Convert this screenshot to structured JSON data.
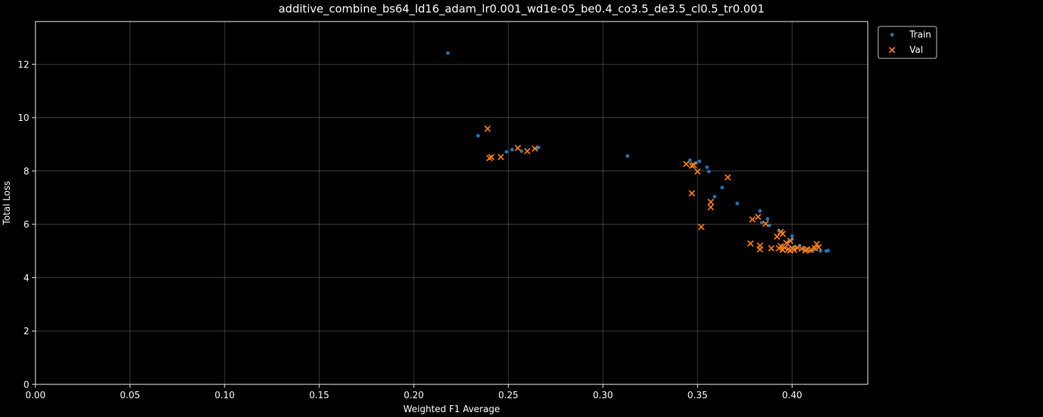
{
  "chart_data": {
    "type": "scatter",
    "title": "additive_combine_bs64_ld16_adam_lr0.001_wd1e-05_be0.4_co3.5_de3.5_cl0.5_tr0.001",
    "xlabel": "Weighted F1 Average",
    "ylabel": "Total Loss",
    "xlim": [
      0.0,
      0.44
    ],
    "ylim": [
      0,
      13.6
    ],
    "xticks": [
      "0.00",
      "0.05",
      "0.10",
      "0.15",
      "0.20",
      "0.25",
      "0.30",
      "0.35",
      "0.40"
    ],
    "yticks": [
      "0",
      "2",
      "4",
      "6",
      "8",
      "10",
      "12"
    ],
    "grid": true,
    "legend_position": "outside-top-right",
    "colors": {
      "train": "#1f77b4",
      "val": "#ff7f0e",
      "background": "#000000",
      "foreground": "#ffffff"
    },
    "series": [
      {
        "name": "Train",
        "marker": "dot",
        "points": [
          [
            0.218,
            12.42
          ],
          [
            0.234,
            9.32
          ],
          [
            0.249,
            8.72
          ],
          [
            0.252,
            8.8
          ],
          [
            0.257,
            8.74
          ],
          [
            0.265,
            8.86
          ],
          [
            0.266,
            8.88
          ],
          [
            0.313,
            8.56
          ],
          [
            0.346,
            8.4
          ],
          [
            0.349,
            8.3
          ],
          [
            0.351,
            8.36
          ],
          [
            0.355,
            8.14
          ],
          [
            0.356,
            7.98
          ],
          [
            0.359,
            7.04
          ],
          [
            0.363,
            7.38
          ],
          [
            0.371,
            6.78
          ],
          [
            0.383,
            6.5
          ],
          [
            0.384,
            6.06
          ],
          [
            0.387,
            6.2
          ],
          [
            0.388,
            5.96
          ],
          [
            0.393,
            5.76
          ],
          [
            0.395,
            5.68
          ],
          [
            0.398,
            5.34
          ],
          [
            0.4,
            5.56
          ],
          [
            0.4,
            5.44
          ],
          [
            0.401,
            5.14
          ],
          [
            0.404,
            5.2
          ],
          [
            0.406,
            5.1
          ],
          [
            0.408,
            5.04
          ],
          [
            0.41,
            5.0
          ],
          [
            0.412,
            5.06
          ],
          [
            0.415,
            5.0
          ],
          [
            0.418,
            5.0
          ],
          [
            0.419,
            5.02
          ]
        ]
      },
      {
        "name": "Val",
        "marker": "x",
        "points": [
          [
            0.239,
            9.58
          ],
          [
            0.24,
            8.48
          ],
          [
            0.241,
            8.52
          ],
          [
            0.246,
            8.52
          ],
          [
            0.255,
            8.86
          ],
          [
            0.26,
            8.74
          ],
          [
            0.264,
            8.84
          ],
          [
            0.344,
            8.26
          ],
          [
            0.347,
            8.2
          ],
          [
            0.348,
            8.22
          ],
          [
            0.35,
            7.98
          ],
          [
            0.347,
            7.16
          ],
          [
            0.357,
            6.84
          ],
          [
            0.357,
            6.64
          ],
          [
            0.366,
            7.76
          ],
          [
            0.352,
            5.9
          ],
          [
            0.379,
            6.18
          ],
          [
            0.382,
            6.28
          ],
          [
            0.386,
            6.02
          ],
          [
            0.378,
            5.28
          ],
          [
            0.383,
            5.2
          ],
          [
            0.383,
            5.06
          ],
          [
            0.389,
            5.1
          ],
          [
            0.392,
            5.54
          ],
          [
            0.394,
            5.72
          ],
          [
            0.395,
            5.64
          ],
          [
            0.397,
            5.3
          ],
          [
            0.399,
            5.38
          ],
          [
            0.393,
            5.1
          ],
          [
            0.394,
            5.18
          ],
          [
            0.395,
            5.04
          ],
          [
            0.396,
            5.12
          ],
          [
            0.398,
            5.06
          ],
          [
            0.399,
            5.02
          ],
          [
            0.4,
            5.1
          ],
          [
            0.401,
            5.04
          ],
          [
            0.403,
            5.12
          ],
          [
            0.405,
            5.08
          ],
          [
            0.407,
            5.02
          ],
          [
            0.408,
            5.06
          ],
          [
            0.41,
            5.04
          ],
          [
            0.412,
            5.1
          ],
          [
            0.413,
            5.26
          ],
          [
            0.414,
            5.14
          ]
        ]
      }
    ]
  }
}
